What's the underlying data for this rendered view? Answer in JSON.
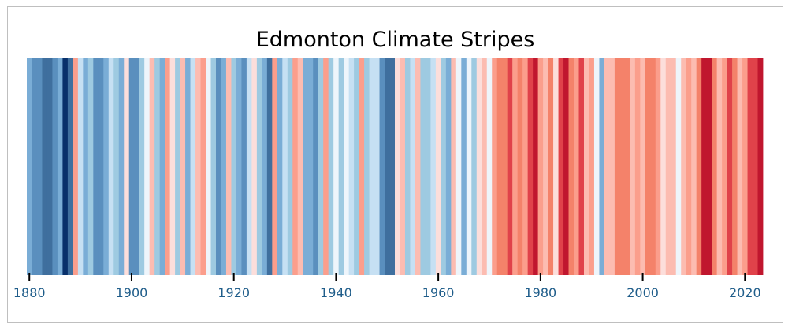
{
  "chart_data": {
    "type": "heatmap",
    "title": "Edmonton Climate Stripes",
    "xlabel": "",
    "ylabel": "",
    "x_start": 1880,
    "x_end": 2023,
    "xlim": [
      1879.5,
      2023.5
    ],
    "x_ticks": [
      1880,
      1900,
      1920,
      1940,
      1960,
      1980,
      2000,
      2020
    ],
    "x_tick_labels": [
      "1880",
      "1900",
      "1920",
      "1940",
      "1960",
      "1980",
      "2000",
      "2020"
    ],
    "value_scale": "relative temperature level: -3 (coldest, dark blue) to +3 (warmest, dark red)",
    "legend": "none",
    "grid": false,
    "palette": {
      "-3": "#08306b",
      "-2.5": "#3f6f9e",
      "-2": "#5a8fbe",
      "-1.5": "#7aadd6",
      "-1": "#9ecae1",
      "-0.5": "#c6e0f3",
      "0": "#eef5fb",
      "0.5": "#fcdedb",
      "1": "#fcbcb1",
      "1.5": "#fb9e8c",
      "2": "#f4826a",
      "2.5": "#e0424a",
      "3": "#c0162e"
    },
    "values": [
      -1.5,
      -2,
      -2,
      -2.5,
      -2.5,
      -2,
      -1.5,
      -3,
      -2.5,
      1.5,
      -0.5,
      -1.5,
      -1,
      -2,
      -2,
      -1.5,
      -0.5,
      -1,
      -1.5,
      0.5,
      -2,
      -2,
      -1,
      0,
      1,
      -1,
      -1.5,
      1.5,
      0.5,
      -1,
      1,
      -1.5,
      -0.5,
      1,
      1.5,
      0,
      -1,
      -2,
      -1.5,
      1,
      -1,
      -1.5,
      -2,
      -0.5,
      0.5,
      -1,
      -1.5,
      -2.5,
      1.5,
      -1.5,
      -0.5,
      -1,
      1.5,
      1,
      -1.5,
      -1.5,
      -2,
      -1,
      1.5,
      -1,
      0,
      -1,
      0,
      -0.5,
      -1,
      1.5,
      -1,
      -0.5,
      -0.5,
      -2,
      -2.5,
      -2.5,
      0.5,
      1,
      -1,
      -0.5,
      1,
      -1,
      -1,
      -0.5,
      0.5,
      -1,
      -1.5,
      1,
      0,
      -1.5,
      0,
      -1,
      0.5,
      1,
      0,
      1.5,
      2,
      2,
      2.5,
      1.5,
      2,
      1.5,
      2.5,
      3,
      1.5,
      1,
      2,
      0.5,
      2.5,
      3,
      2,
      1.5,
      2.5,
      1,
      1.5,
      0,
      -1.5,
      1,
      1,
      2,
      2,
      2,
      1,
      1.5,
      1,
      2,
      2,
      1.5,
      0.5,
      1,
      1,
      0,
      1,
      1.5,
      1,
      2,
      3,
      3,
      2,
      1,
      1.5,
      2.5,
      2,
      1,
      1.5,
      2.5,
      2.5,
      3
    ]
  }
}
